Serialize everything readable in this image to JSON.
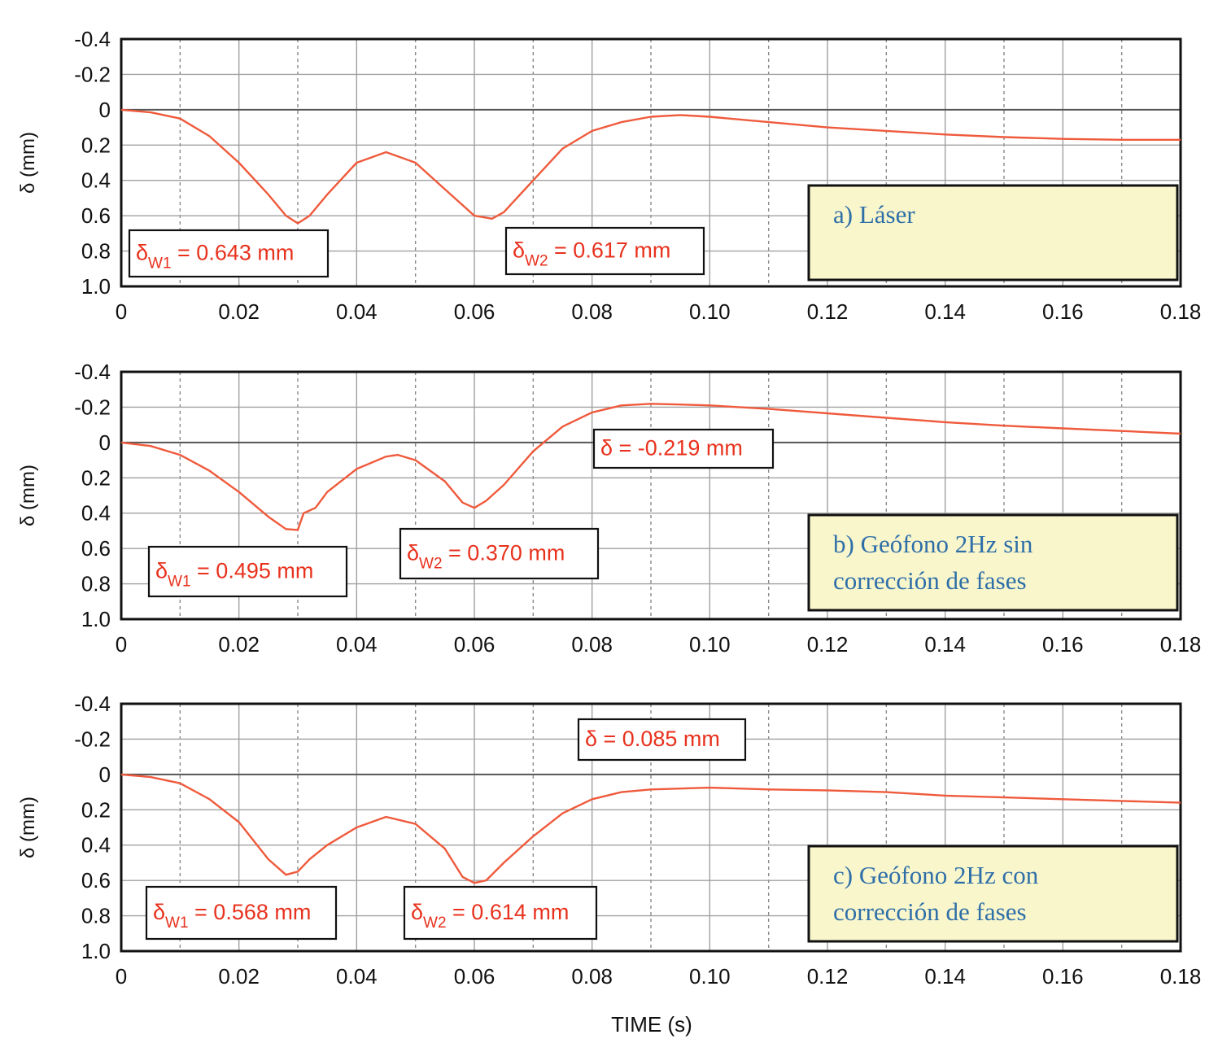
{
  "xlabel": "TIME (s)",
  "colors": {
    "curve": "#ef5a3c",
    "annotation_text": "#e8321e",
    "panel_box_fill": "#faf6cc",
    "panel_text": "#2e6fa8",
    "grid_solid": "#a0a0a0",
    "grid_dashed": "#8a8a8a"
  },
  "chart_data": [
    {
      "type": "line",
      "panel_label": "a) Láser",
      "panel_label_lines": [
        "a) Láser"
      ],
      "xlabel": "",
      "ylabel": "δ (mm)",
      "xlim": [
        0,
        0.18
      ],
      "ylim": [
        -0.4,
        1.0
      ],
      "y_inverted": true,
      "xticks": [
        "0",
        "0.02",
        "0.04",
        "0.06",
        "0.08",
        "0.10",
        "0.12",
        "0.14",
        "0.16",
        "0.18"
      ],
      "yticks": [
        "-0.4",
        "-0.2",
        "0",
        "0.2",
        "0.4",
        "0.6",
        "0.8",
        "1.0"
      ],
      "grid": "solid at labeled x and y ticks, dashed vertical at odd x hundredths",
      "series": [
        {
          "x": [
            0,
            0.005,
            0.01,
            0.015,
            0.02,
            0.025,
            0.028,
            0.03,
            0.032,
            0.035,
            0.04,
            0.045,
            0.05,
            0.055,
            0.06,
            0.063,
            0.065,
            0.07,
            0.075,
            0.08,
            0.085,
            0.09,
            0.095,
            0.1,
            0.11,
            0.12,
            0.13,
            0.14,
            0.15,
            0.16,
            0.17,
            0.18
          ],
          "y": [
            0,
            0.015,
            0.05,
            0.15,
            0.3,
            0.48,
            0.6,
            0.643,
            0.6,
            0.48,
            0.3,
            0.24,
            0.3,
            0.45,
            0.6,
            0.617,
            0.58,
            0.4,
            0.22,
            0.12,
            0.07,
            0.04,
            0.03,
            0.04,
            0.07,
            0.1,
            0.12,
            0.14,
            0.155,
            0.165,
            0.17,
            0.17
          ]
        }
      ],
      "annotations": [
        {
          "main": "δ",
          "sub": "W1",
          "rest": " = 0.643 mm"
        },
        {
          "main": "δ",
          "sub": "W2",
          "rest": " = 0.617 mm"
        }
      ]
    },
    {
      "type": "line",
      "panel_label": "b) Geófono 2Hz sin corrección de fases",
      "panel_label_lines": [
        "b) Geófono 2Hz sin",
        "corrección de fases"
      ],
      "xlabel": "",
      "ylabel": "δ (mm)",
      "xlim": [
        0,
        0.18
      ],
      "ylim": [
        -0.4,
        1.0
      ],
      "y_inverted": true,
      "xticks": [
        "0",
        "0.02",
        "0.04",
        "0.06",
        "0.08",
        "0.10",
        "0.12",
        "0.14",
        "0.16",
        "0.18"
      ],
      "yticks": [
        "-0.4",
        "-0.2",
        "0",
        "0.2",
        "0.4",
        "0.6",
        "0.8",
        "1.0"
      ],
      "grid": "solid at labeled x and y ticks, dashed vertical at odd x hundredths",
      "series": [
        {
          "x": [
            0,
            0.005,
            0.01,
            0.015,
            0.02,
            0.025,
            0.028,
            0.03,
            0.031,
            0.033,
            0.035,
            0.04,
            0.045,
            0.047,
            0.05,
            0.055,
            0.058,
            0.06,
            0.062,
            0.065,
            0.07,
            0.075,
            0.08,
            0.085,
            0.09,
            0.095,
            0.1,
            0.11,
            0.12,
            0.13,
            0.14,
            0.15,
            0.16,
            0.17,
            0.18
          ],
          "y": [
            0,
            0.02,
            0.07,
            0.16,
            0.28,
            0.42,
            0.49,
            0.495,
            0.4,
            0.37,
            0.28,
            0.15,
            0.08,
            0.07,
            0.1,
            0.22,
            0.34,
            0.37,
            0.33,
            0.24,
            0.05,
            -0.09,
            -0.17,
            -0.21,
            -0.219,
            -0.215,
            -0.21,
            -0.19,
            -0.165,
            -0.14,
            -0.115,
            -0.095,
            -0.08,
            -0.065,
            -0.05
          ]
        }
      ],
      "annotations": [
        {
          "main": "δ",
          "sub": "",
          "rest": " = -0.219 mm"
        },
        {
          "main": "δ",
          "sub": "W1",
          "rest": " = 0.495 mm"
        },
        {
          "main": "δ",
          "sub": "W2",
          "rest": " = 0.370 mm"
        }
      ]
    },
    {
      "type": "line",
      "panel_label": "c) Geófono 2Hz con corrección de fases",
      "panel_label_lines": [
        "c) Geófono 2Hz con",
        "corrección de fases"
      ],
      "xlabel": "TIME (s)",
      "ylabel": "δ (mm)",
      "xlim": [
        0,
        0.18
      ],
      "ylim": [
        -0.4,
        1.0
      ],
      "y_inverted": true,
      "xticks": [
        "0",
        "0.02",
        "0.04",
        "0.06",
        "0.08",
        "0.10",
        "0.12",
        "0.14",
        "0.16",
        "0.18"
      ],
      "yticks": [
        "-0.4",
        "-0.2",
        "0",
        "0.2",
        "0.4",
        "0.6",
        "0.8",
        "1.0"
      ],
      "grid": "solid at labeled x and y ticks, dashed vertical at odd x hundredths",
      "series": [
        {
          "x": [
            0,
            0.005,
            0.01,
            0.015,
            0.02,
            0.025,
            0.028,
            0.03,
            0.032,
            0.035,
            0.04,
            0.045,
            0.05,
            0.055,
            0.058,
            0.06,
            0.062,
            0.065,
            0.07,
            0.075,
            0.08,
            0.085,
            0.09,
            0.095,
            0.1,
            0.11,
            0.12,
            0.13,
            0.14,
            0.15,
            0.16,
            0.17,
            0.18
          ],
          "y": [
            0,
            0.015,
            0.05,
            0.14,
            0.27,
            0.48,
            0.568,
            0.55,
            0.48,
            0.4,
            0.3,
            0.24,
            0.28,
            0.42,
            0.58,
            0.614,
            0.6,
            0.5,
            0.35,
            0.22,
            0.14,
            0.1,
            0.085,
            0.08,
            0.075,
            0.085,
            0.09,
            0.1,
            0.12,
            0.13,
            0.14,
            0.15,
            0.16
          ]
        }
      ],
      "annotations": [
        {
          "main": "δ",
          "sub": "",
          "rest": " = 0.085 mm"
        },
        {
          "main": "δ",
          "sub": "W1",
          "rest": " = 0.568 mm"
        },
        {
          "main": "δ",
          "sub": "W2",
          "rest": " = 0.614 mm"
        }
      ]
    }
  ]
}
